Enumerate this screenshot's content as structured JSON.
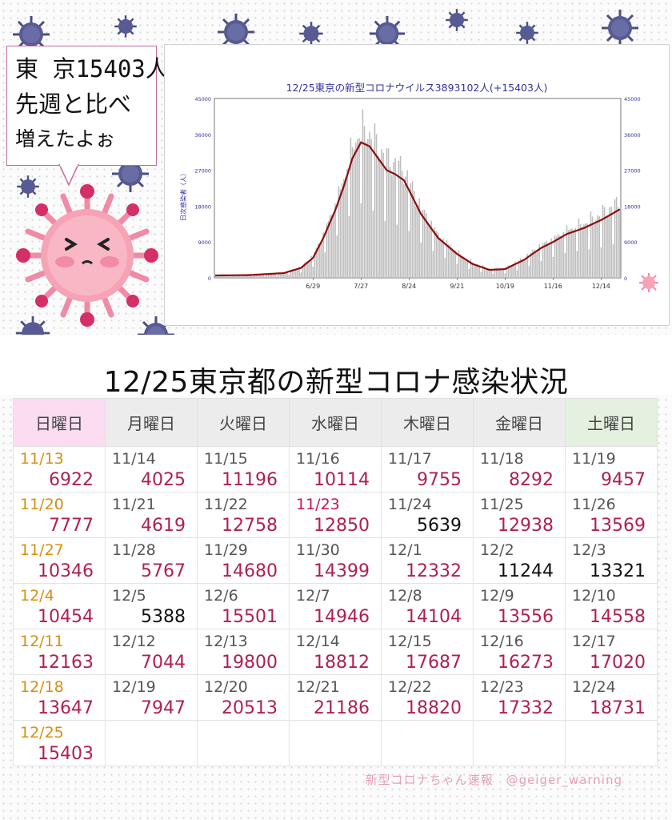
{
  "bubble": {
    "line1": "東 京15403人",
    "line2": "先週と比べ",
    "line3": "増えたよぉ"
  },
  "chart_data": {
    "type": "bar",
    "title": "12/25東京の新型コロナウイルス3893102人(+15403人)",
    "ylabel": "日次感染者（人）",
    "ylim": [
      0,
      45000
    ],
    "yticks": [
      0,
      9000,
      18000,
      27000,
      36000,
      45000
    ],
    "ytick_labels": [
      "0",
      "9000",
      "18000",
      "27000",
      "36000",
      "45000"
    ],
    "x_labels": [
      "6/29",
      "7/27",
      "8/24",
      "9/21",
      "10/19",
      "11/16",
      "12/14"
    ],
    "x_label_day_index": [
      57,
      85,
      113,
      141,
      169,
      197,
      225
    ],
    "x_first_day": "5/3",
    "day_count": 237,
    "anchors": [
      [
        0,
        600
      ],
      [
        20,
        700
      ],
      [
        40,
        1200
      ],
      [
        50,
        2500
      ],
      [
        57,
        5000
      ],
      [
        63,
        10000
      ],
      [
        70,
        17000
      ],
      [
        75,
        23000
      ],
      [
        80,
        30000
      ],
      [
        85,
        34000
      ],
      [
        90,
        33000
      ],
      [
        95,
        30000
      ],
      [
        100,
        27000
      ],
      [
        105,
        26000
      ],
      [
        110,
        24500
      ],
      [
        113,
        22000
      ],
      [
        120,
        16000
      ],
      [
        130,
        10000
      ],
      [
        141,
        6000
      ],
      [
        150,
        3500
      ],
      [
        160,
        2000
      ],
      [
        169,
        2200
      ],
      [
        180,
        4500
      ],
      [
        190,
        7500
      ],
      [
        197,
        9000
      ],
      [
        205,
        11000
      ],
      [
        215,
        12500
      ],
      [
        225,
        14500
      ],
      [
        236,
        17200
      ]
    ],
    "colors": {
      "bar": "#bdbdbd",
      "line": "#8b0f0f",
      "axis_text": "#333399"
    },
    "grid": false
  },
  "table": {
    "title": "12/25東京都の新型コロナ感染状況",
    "headers": [
      "日曜日",
      "月曜日",
      "火曜日",
      "水曜日",
      "木曜日",
      "金曜日",
      "土曜日"
    ],
    "rows": [
      [
        {
          "d": "11/13",
          "n": "6922"
        },
        {
          "d": "11/14",
          "n": "4025"
        },
        {
          "d": "11/15",
          "n": "11196"
        },
        {
          "d": "11/16",
          "n": "10114"
        },
        {
          "d": "11/17",
          "n": "9755"
        },
        {
          "d": "11/18",
          "n": "8292"
        },
        {
          "d": "11/19",
          "n": "9457"
        }
      ],
      [
        {
          "d": "11/20",
          "n": "7777"
        },
        {
          "d": "11/21",
          "n": "4619"
        },
        {
          "d": "11/22",
          "n": "12758"
        },
        {
          "d": "11/23",
          "n": "12850",
          "hol": true
        },
        {
          "d": "11/24",
          "n": "5639",
          "blk": true
        },
        {
          "d": "11/25",
          "n": "12938"
        },
        {
          "d": "11/26",
          "n": "13569"
        }
      ],
      [
        {
          "d": "11/27",
          "n": "10346"
        },
        {
          "d": "11/28",
          "n": "5767"
        },
        {
          "d": "11/29",
          "n": "14680"
        },
        {
          "d": "11/30",
          "n": "14399"
        },
        {
          "d": "12/1",
          "n": "12332"
        },
        {
          "d": "12/2",
          "n": "11244",
          "blk": true
        },
        {
          "d": "12/3",
          "n": "13321",
          "blk": true
        }
      ],
      [
        {
          "d": "12/4",
          "n": "10454"
        },
        {
          "d": "12/5",
          "n": "5388",
          "blk": true
        },
        {
          "d": "12/6",
          "n": "15501"
        },
        {
          "d": "12/7",
          "n": "14946"
        },
        {
          "d": "12/8",
          "n": "14104"
        },
        {
          "d": "12/9",
          "n": "13556"
        },
        {
          "d": "12/10",
          "n": "14558"
        }
      ],
      [
        {
          "d": "12/11",
          "n": "12163"
        },
        {
          "d": "12/12",
          "n": "7044"
        },
        {
          "d": "12/13",
          "n": "19800"
        },
        {
          "d": "12/14",
          "n": "18812"
        },
        {
          "d": "12/15",
          "n": "17687"
        },
        {
          "d": "12/16",
          "n": "16273"
        },
        {
          "d": "12/17",
          "n": "17020"
        }
      ],
      [
        {
          "d": "12/18",
          "n": "13647"
        },
        {
          "d": "12/19",
          "n": "7947"
        },
        {
          "d": "12/20",
          "n": "20513"
        },
        {
          "d": "12/21",
          "n": "21186"
        },
        {
          "d": "12/22",
          "n": "18820"
        },
        {
          "d": "12/23",
          "n": "17332"
        },
        {
          "d": "12/24",
          "n": "18731"
        }
      ],
      [
        {
          "d": "12/25",
          "n": "15403"
        },
        null,
        null,
        null,
        null,
        null,
        null
      ]
    ]
  },
  "credit": "新型コロナちゃん速報　@geiger_warning",
  "colors": {
    "sunday_date": "#d4900f",
    "holiday_date": "#c5155a",
    "count": "#b02050",
    "count_black": "#111111"
  }
}
